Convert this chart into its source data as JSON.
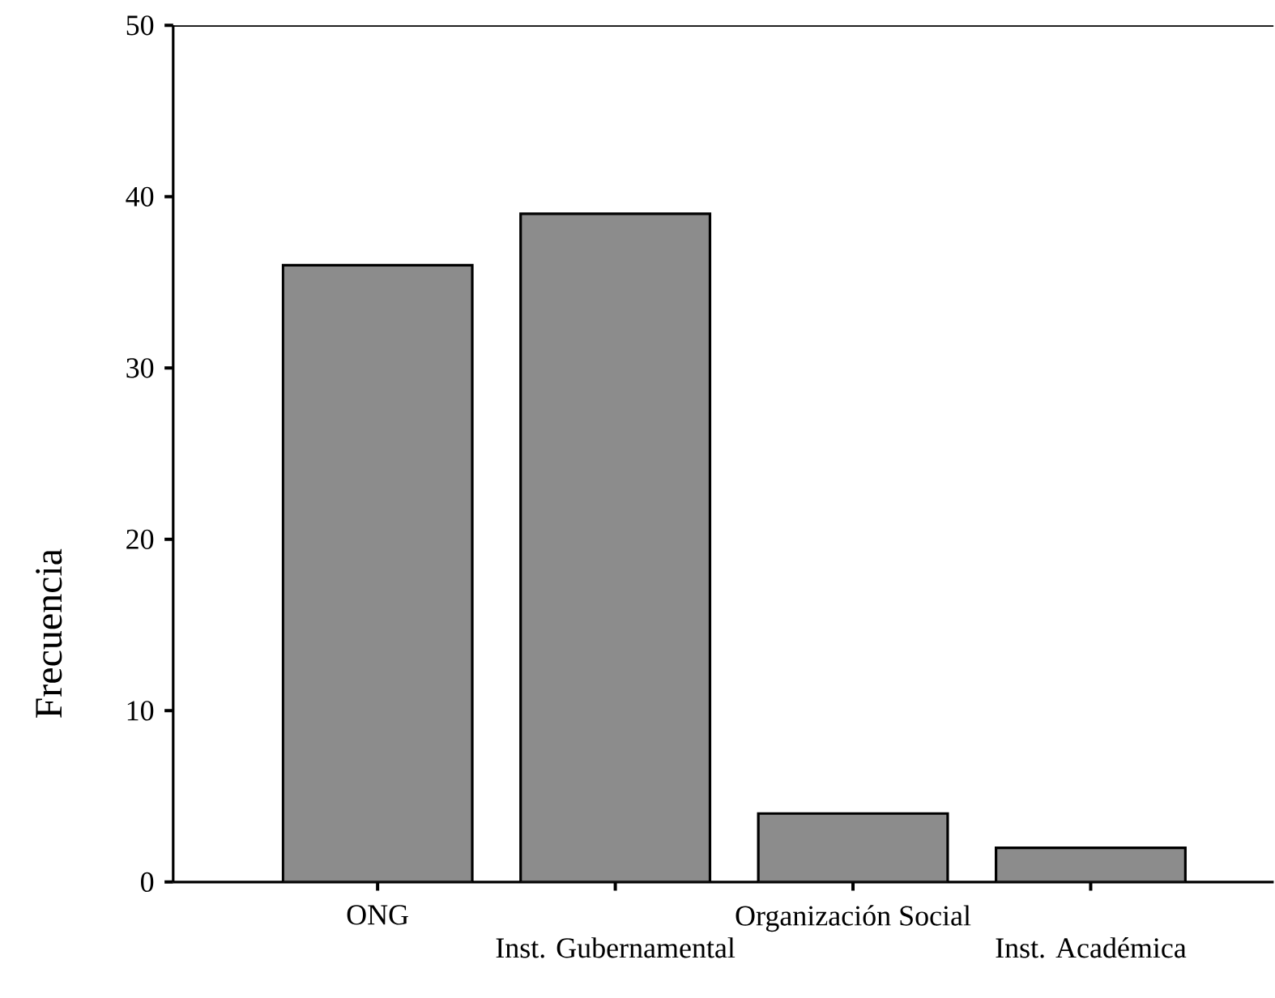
{
  "chart_data": {
    "type": "bar",
    "ylabel": "Frecuencia",
    "categories": [
      "ONG",
      "Inst. Gubernamental",
      "Organización Social",
      "Inst. Académica"
    ],
    "values": [
      36,
      39,
      4,
      2
    ],
    "color": "#8c8c8c",
    "ylim": [
      0,
      50
    ],
    "yticks": [
      0,
      10,
      20,
      30,
      40,
      50
    ],
    "grid": false
  }
}
